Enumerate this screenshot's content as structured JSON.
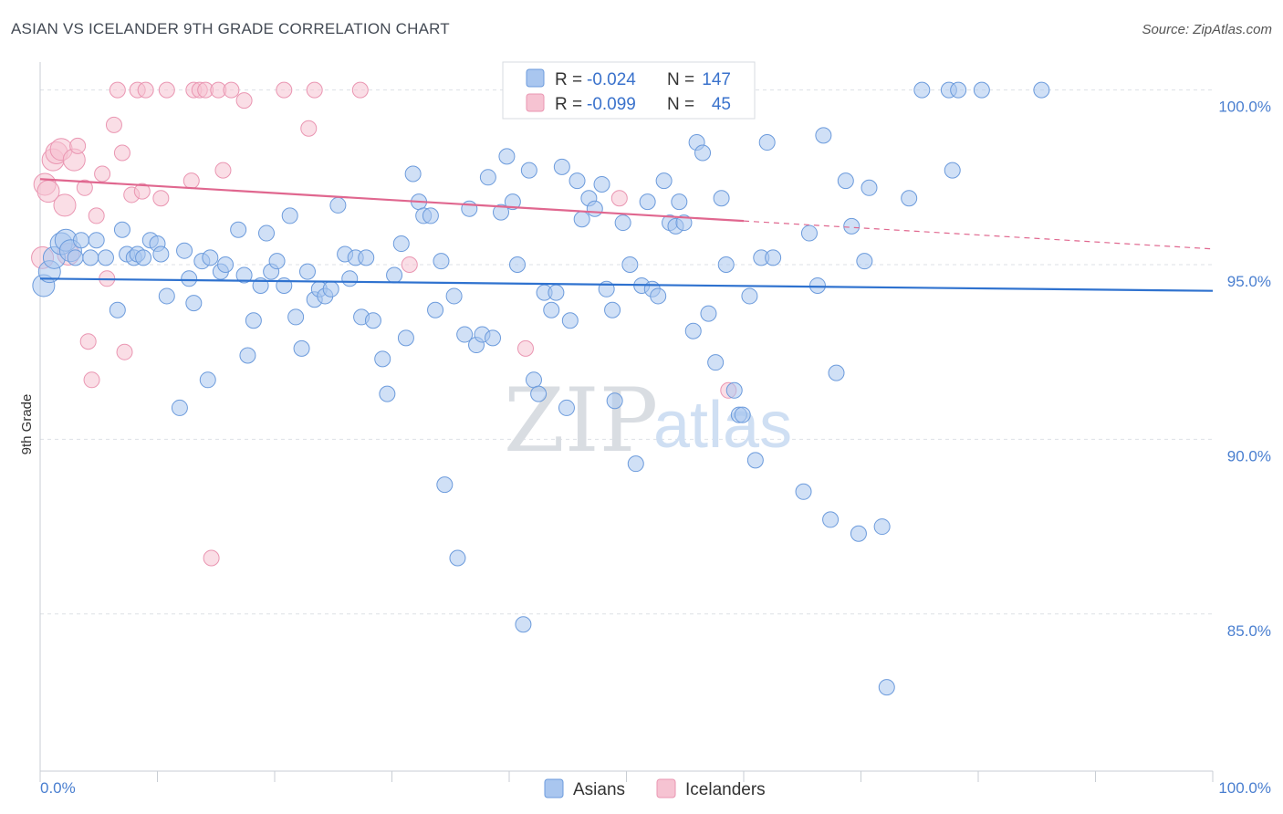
{
  "title": "ASIAN VS ICELANDER 9TH GRADE CORRELATION CHART",
  "source": "Source: ZipAtlas.com",
  "watermark": {
    "zip": "ZIP",
    "atlas": "atlas"
  },
  "colors": {
    "asian_fill": "#a9c6ef",
    "asian_stroke": "#6c9bdc",
    "asian_line": "#2f72cf",
    "icelander_fill": "#f6c3d2",
    "icelander_stroke": "#ea96b2",
    "icelander_line": "#e0678f",
    "axis_text": "#4a7fd0",
    "grid": "#dde1e6"
  },
  "legend_top": {
    "rows": [
      {
        "series": "Asians",
        "r_label": "R =",
        "r_value": "-0.024",
        "n_label": "N =",
        "n_value": "147"
      },
      {
        "series": "Icelanders",
        "r_label": "R =",
        "r_value": "-0.099",
        "n_label": "N =",
        "n_value": "45"
      }
    ]
  },
  "chart_data": {
    "type": "scatter",
    "title": "ASIAN VS ICELANDER 9TH GRADE CORRELATION CHART",
    "xlabel": "",
    "ylabel": "9th Grade",
    "xlim": [
      0,
      100
    ],
    "ylim": [
      80.5,
      100.8
    ],
    "x_tick_labels": [
      "0.0%",
      "100.0%"
    ],
    "y_ticks": [
      85,
      90,
      95,
      100
    ],
    "y_tick_labels": [
      "85.0%",
      "90.0%",
      "95.0%",
      "100.0%"
    ],
    "grid": true,
    "legend_position": "bottom",
    "series": [
      {
        "name": "Asians",
        "r": -0.024,
        "n": 147,
        "trend": {
          "x": [
            0,
            100
          ],
          "y": [
            94.6,
            94.25
          ]
        },
        "points": [
          [
            0.3,
            94.4
          ],
          [
            0.8,
            94.8
          ],
          [
            1.2,
            95.2
          ],
          [
            1.8,
            95.6
          ],
          [
            2.2,
            95.7
          ],
          [
            2.6,
            95.4
          ],
          [
            3.0,
            95.2
          ],
          [
            3.5,
            95.7
          ],
          [
            4.3,
            95.2
          ],
          [
            4.8,
            95.7
          ],
          [
            5.6,
            95.2
          ],
          [
            6.6,
            93.7
          ],
          [
            7.0,
            96.0
          ],
          [
            7.4,
            95.3
          ],
          [
            8.0,
            95.2
          ],
          [
            8.3,
            95.3
          ],
          [
            8.8,
            95.2
          ],
          [
            9.4,
            95.7
          ],
          [
            10.0,
            95.6
          ],
          [
            10.3,
            95.3
          ],
          [
            10.8,
            94.1
          ],
          [
            11.9,
            90.9
          ],
          [
            12.3,
            95.4
          ],
          [
            12.7,
            94.6
          ],
          [
            13.1,
            93.9
          ],
          [
            13.8,
            95.1
          ],
          [
            14.5,
            95.2
          ],
          [
            14.3,
            91.7
          ],
          [
            15.4,
            94.8
          ],
          [
            15.8,
            95.0
          ],
          [
            16.9,
            96.0
          ],
          [
            17.4,
            94.7
          ],
          [
            17.7,
            92.4
          ],
          [
            18.2,
            93.4
          ],
          [
            18.8,
            94.4
          ],
          [
            19.3,
            95.9
          ],
          [
            19.7,
            94.8
          ],
          [
            20.2,
            95.1
          ],
          [
            20.8,
            94.4
          ],
          [
            21.3,
            96.4
          ],
          [
            21.8,
            93.5
          ],
          [
            22.3,
            92.6
          ],
          [
            22.8,
            94.8
          ],
          [
            23.4,
            94.0
          ],
          [
            23.8,
            94.3
          ],
          [
            24.3,
            94.1
          ],
          [
            24.8,
            94.3
          ],
          [
            25.4,
            96.7
          ],
          [
            26.0,
            95.3
          ],
          [
            26.4,
            94.6
          ],
          [
            26.9,
            95.2
          ],
          [
            27.4,
            93.5
          ],
          [
            27.8,
            95.2
          ],
          [
            28.4,
            93.4
          ],
          [
            29.2,
            92.3
          ],
          [
            29.6,
            91.3
          ],
          [
            30.2,
            94.7
          ],
          [
            30.8,
            95.6
          ],
          [
            31.2,
            92.9
          ],
          [
            31.8,
            97.6
          ],
          [
            32.3,
            96.8
          ],
          [
            32.7,
            96.4
          ],
          [
            33.3,
            96.4
          ],
          [
            33.7,
            93.7
          ],
          [
            34.2,
            95.1
          ],
          [
            34.5,
            88.7
          ],
          [
            35.3,
            94.1
          ],
          [
            35.6,
            86.6
          ],
          [
            36.2,
            93.0
          ],
          [
            36.6,
            96.6
          ],
          [
            37.2,
            92.7
          ],
          [
            37.7,
            93.0
          ],
          [
            38.2,
            97.5
          ],
          [
            38.6,
            92.9
          ],
          [
            39.3,
            96.5
          ],
          [
            39.8,
            98.1
          ],
          [
            40.3,
            96.8
          ],
          [
            40.7,
            95.0
          ],
          [
            41.2,
            84.7
          ],
          [
            41.7,
            97.7
          ],
          [
            42.1,
            91.7
          ],
          [
            42.5,
            91.3
          ],
          [
            43.0,
            94.2
          ],
          [
            43.6,
            93.7
          ],
          [
            44.0,
            94.2
          ],
          [
            44.5,
            97.8
          ],
          [
            44.9,
            90.9
          ],
          [
            45.2,
            93.4
          ],
          [
            45.8,
            97.4
          ],
          [
            46.2,
            96.3
          ],
          [
            46.8,
            96.9
          ],
          [
            47.3,
            96.6
          ],
          [
            47.9,
            97.3
          ],
          [
            48.3,
            94.3
          ],
          [
            48.8,
            93.7
          ],
          [
            49.0,
            91.1
          ],
          [
            49.7,
            96.2
          ],
          [
            50.3,
            95.0
          ],
          [
            50.8,
            89.3
          ],
          [
            51.3,
            94.4
          ],
          [
            51.8,
            96.8
          ],
          [
            52.2,
            94.3
          ],
          [
            52.7,
            94.1
          ],
          [
            53.2,
            97.4
          ],
          [
            53.7,
            96.2
          ],
          [
            54.2,
            96.1
          ],
          [
            54.5,
            96.8
          ],
          [
            54.9,
            96.2
          ],
          [
            55.7,
            93.1
          ],
          [
            56.0,
            98.5
          ],
          [
            56.5,
            98.2
          ],
          [
            57.0,
            93.6
          ],
          [
            57.6,
            92.2
          ],
          [
            58.1,
            96.9
          ],
          [
            58.5,
            95.0
          ],
          [
            59.2,
            91.4
          ],
          [
            59.6,
            90.7
          ],
          [
            59.9,
            90.7
          ],
          [
            60.5,
            94.1
          ],
          [
            61.0,
            89.4
          ],
          [
            61.5,
            95.2
          ],
          [
            62.0,
            98.5
          ],
          [
            62.5,
            95.2
          ],
          [
            65.1,
            88.5
          ],
          [
            65.6,
            95.9
          ],
          [
            66.3,
            94.4
          ],
          [
            66.8,
            98.7
          ],
          [
            67.4,
            87.7
          ],
          [
            67.9,
            91.9
          ],
          [
            68.7,
            97.4
          ],
          [
            69.2,
            96.1
          ],
          [
            69.8,
            87.3
          ],
          [
            70.3,
            95.1
          ],
          [
            70.7,
            97.2
          ],
          [
            71.8,
            87.5
          ],
          [
            72.2,
            82.9
          ],
          [
            74.1,
            96.9
          ],
          [
            75.2,
            100.0
          ],
          [
            77.5,
            100.0
          ],
          [
            78.3,
            100.0
          ],
          [
            77.8,
            97.7
          ],
          [
            80.3,
            100.0
          ],
          [
            85.4,
            100.0
          ]
        ]
      },
      {
        "name": "Icelanders",
        "r": -0.099,
        "n": 45,
        "trend": {
          "x": [
            0,
            60
          ],
          "y": [
            97.45,
            96.25
          ]
        },
        "trend_dashed": {
          "x": [
            60,
            100
          ],
          "y": [
            96.25,
            95.45
          ]
        },
        "points": [
          [
            0.2,
            95.2
          ],
          [
            0.4,
            97.3
          ],
          [
            0.7,
            97.1
          ],
          [
            1.1,
            98.0
          ],
          [
            1.4,
            98.2
          ],
          [
            1.8,
            98.3
          ],
          [
            2.1,
            96.7
          ],
          [
            2.4,
            95.3
          ],
          [
            2.9,
            98.0
          ],
          [
            3.2,
            98.4
          ],
          [
            3.8,
            97.2
          ],
          [
            4.1,
            92.8
          ],
          [
            4.4,
            91.7
          ],
          [
            4.8,
            96.4
          ],
          [
            5.3,
            97.6
          ],
          [
            5.7,
            94.6
          ],
          [
            6.3,
            99.0
          ],
          [
            6.6,
            100.0
          ],
          [
            7.0,
            98.2
          ],
          [
            7.2,
            92.5
          ],
          [
            7.8,
            97.0
          ],
          [
            8.3,
            100.0
          ],
          [
            8.7,
            97.1
          ],
          [
            9.0,
            100.0
          ],
          [
            10.3,
            96.9
          ],
          [
            10.8,
            100.0
          ],
          [
            12.9,
            97.4
          ],
          [
            13.1,
            100.0
          ],
          [
            13.6,
            100.0
          ],
          [
            14.1,
            100.0
          ],
          [
            14.6,
            86.6
          ],
          [
            15.2,
            100.0
          ],
          [
            15.6,
            97.7
          ],
          [
            16.3,
            100.0
          ],
          [
            17.4,
            99.7
          ],
          [
            20.8,
            100.0
          ],
          [
            22.9,
            98.9
          ],
          [
            23.4,
            100.0
          ],
          [
            27.3,
            100.0
          ],
          [
            31.5,
            95.0
          ],
          [
            41.4,
            92.6
          ],
          [
            46.6,
            100.0
          ],
          [
            49.4,
            96.9
          ],
          [
            58.7,
            91.4
          ]
        ]
      }
    ]
  },
  "legend_bottom": [
    {
      "label": "Asians"
    },
    {
      "label": "Icelanders"
    }
  ]
}
